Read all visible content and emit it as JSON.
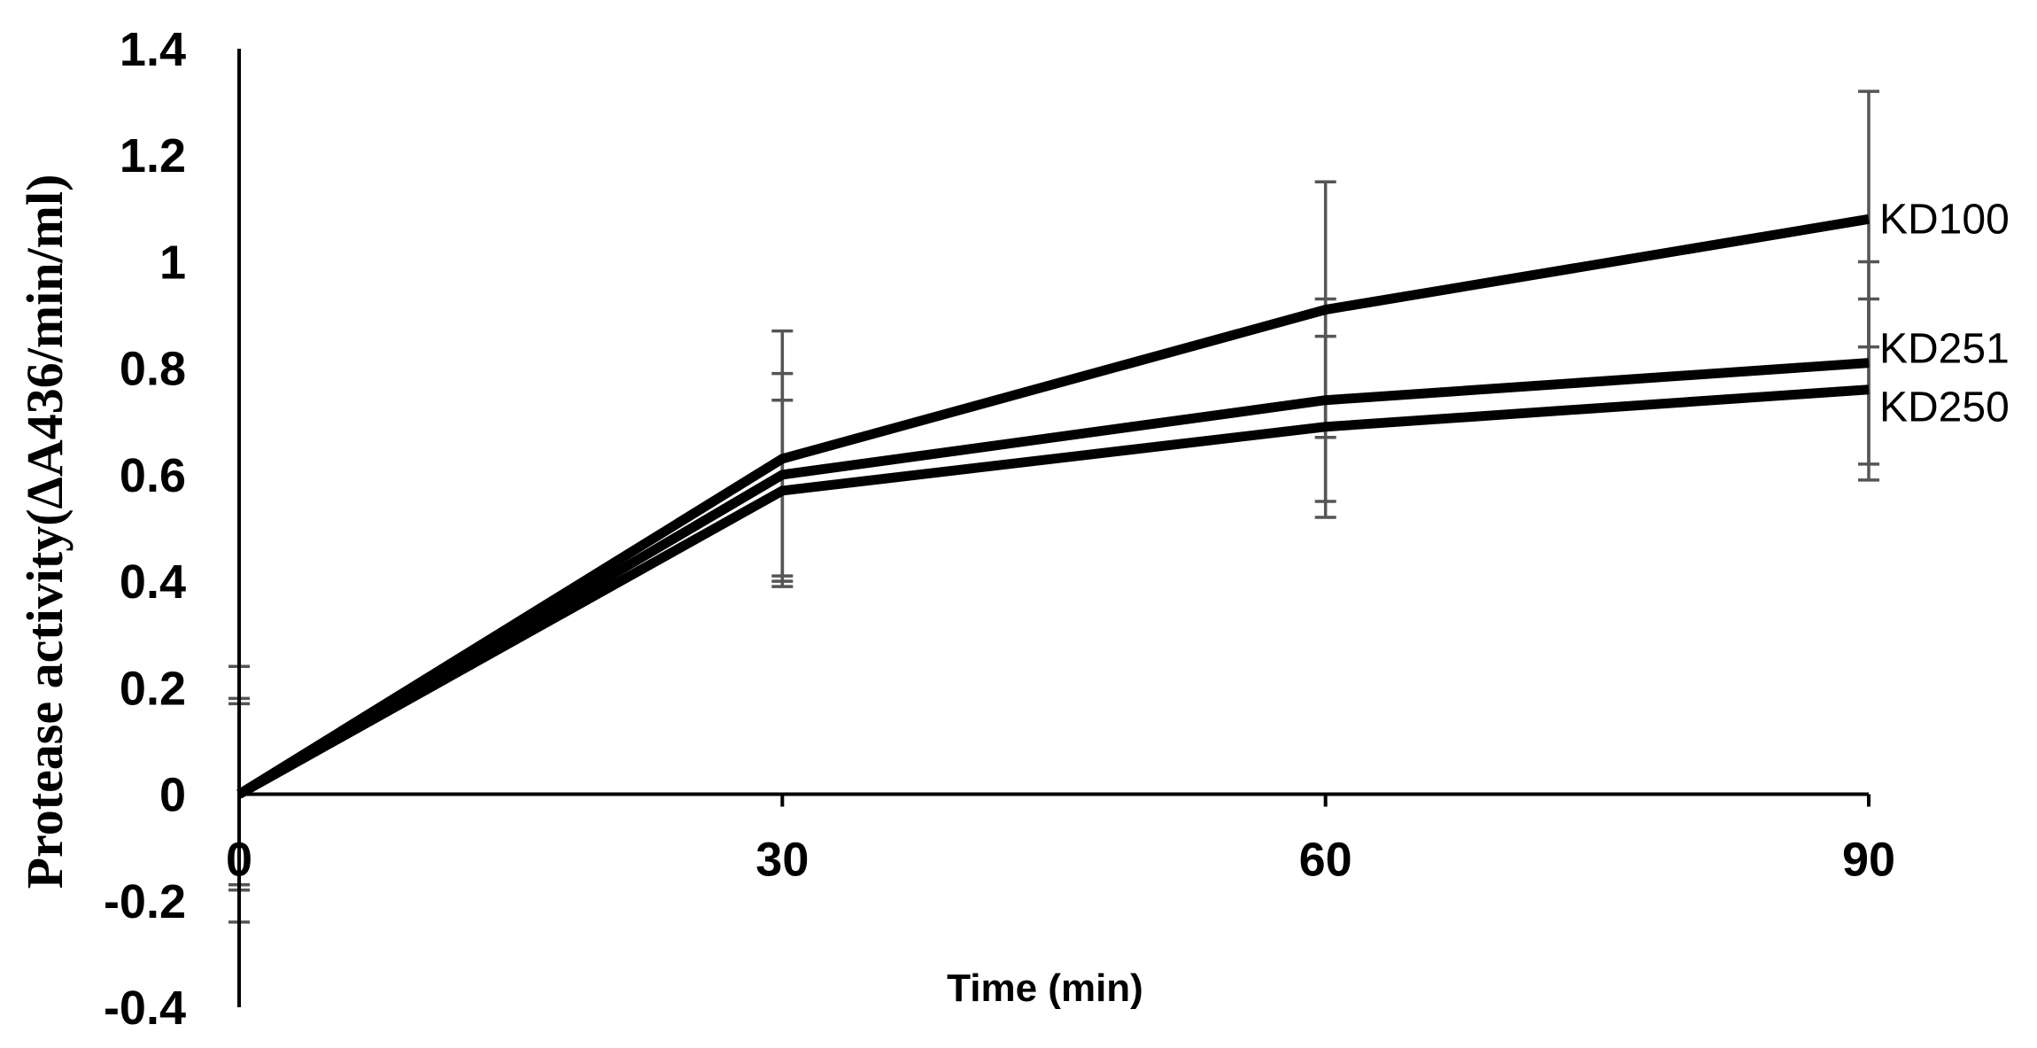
{
  "chart_data": {
    "type": "line",
    "title": "",
    "xlabel": "Time (min)",
    "ylabel": "Protease activity(ΔA436/min/ml)",
    "x": [
      0,
      30,
      60,
      90
    ],
    "x_tick_labels": [
      "0",
      "30",
      "60",
      "90"
    ],
    "ylim": [
      -0.4,
      1.4
    ],
    "y_ticks": [
      -0.4,
      -0.2,
      0,
      0.2,
      0.4,
      0.6,
      0.8,
      1,
      1.2,
      1.4
    ],
    "y_tick_labels": [
      "-0.4",
      "-0.2",
      "0",
      "0.2",
      "0.4",
      "0.6",
      "0.8",
      "1",
      "1.2",
      "1.4"
    ],
    "grid": false,
    "legend": "inline labels at right end of lines",
    "series": [
      {
        "name": "KD100",
        "values": [
          0,
          0.63,
          0.91,
          1.08
        ],
        "error": [
          0.24,
          0.24,
          0.24,
          0.24
        ]
      },
      {
        "name": "KD251",
        "values": [
          0,
          0.6,
          0.74,
          0.81
        ],
        "error": [
          0.18,
          0.19,
          0.19,
          0.19
        ]
      },
      {
        "name": "KD250",
        "values": [
          0,
          0.57,
          0.69,
          0.76
        ],
        "error": [
          0.17,
          0.17,
          0.17,
          0.17
        ]
      }
    ]
  }
}
